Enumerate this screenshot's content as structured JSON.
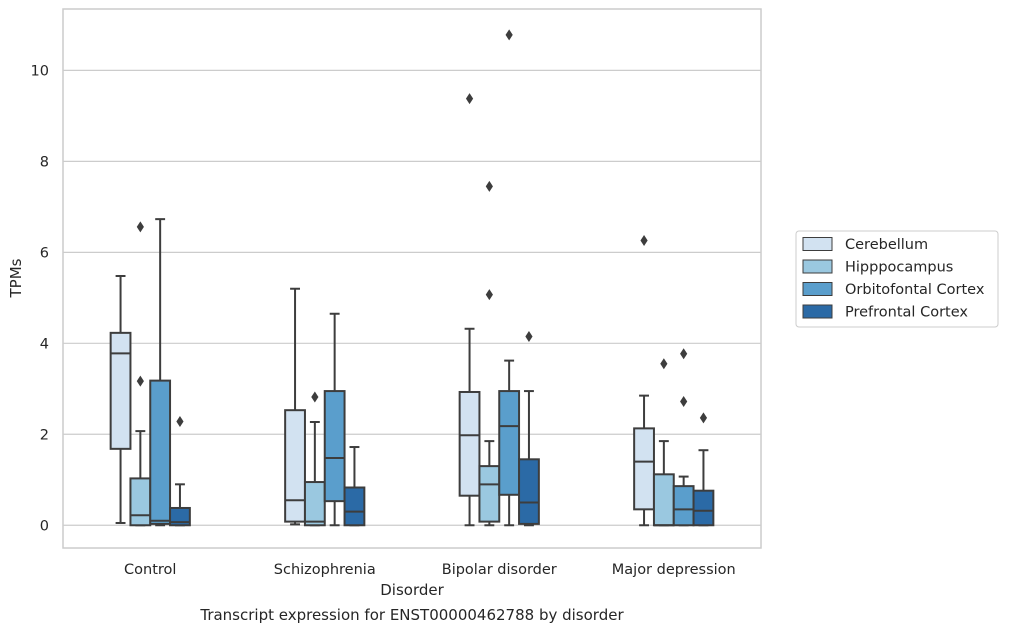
{
  "caption": "Transcript expression for ENST00000462788 by disorder",
  "chart_data": {
    "type": "boxplot",
    "title": "",
    "xlabel": "Disorder",
    "ylabel": "TPMs",
    "ylim": [
      -0.5,
      11.35
    ],
    "yticks": [
      0,
      2,
      4,
      6,
      8,
      10
    ],
    "grid": "horizontal",
    "legend_position": "right",
    "categories": [
      "Control",
      "Schizophrenia",
      "Bipolar disorder",
      "Major depression"
    ],
    "series": [
      {
        "name": "Cerebellum",
        "color": "#d2e2f1",
        "boxes": [
          {
            "whislo": 0.05,
            "q1": 1.68,
            "med": 3.78,
            "q3": 4.23,
            "whishi": 5.48,
            "fliers": []
          },
          {
            "whislo": 0.02,
            "q1": 0.08,
            "med": 0.55,
            "q3": 2.53,
            "whishi": 5.2,
            "fliers": []
          },
          {
            "whislo": 0.0,
            "q1": 0.65,
            "med": 1.98,
            "q3": 2.93,
            "whishi": 4.32,
            "fliers": [
              9.38
            ]
          },
          {
            "whislo": 0.0,
            "q1": 0.35,
            "med": 1.4,
            "q3": 2.13,
            "whishi": 2.85,
            "fliers": [
              6.26
            ]
          }
        ]
      },
      {
        "name": "Hipppocampus",
        "color": "#9ac8e0",
        "boxes": [
          {
            "whislo": 0.0,
            "q1": 0.0,
            "med": 0.22,
            "q3": 1.03,
            "whishi": 2.07,
            "fliers": [
              3.17,
              6.56
            ]
          },
          {
            "whislo": 0.0,
            "q1": 0.0,
            "med": 0.08,
            "q3": 0.95,
            "whishi": 2.27,
            "fliers": [
              2.82
            ]
          },
          {
            "whislo": 0.0,
            "q1": 0.08,
            "med": 0.9,
            "q3": 1.3,
            "whishi": 1.85,
            "fliers": [
              5.07,
              7.45
            ]
          },
          {
            "whislo": 0.0,
            "q1": 0.0,
            "med": 0.0,
            "q3": 1.12,
            "whishi": 1.85,
            "fliers": [
              3.55
            ]
          }
        ]
      },
      {
        "name": "Orbitofontal Cortex",
        "color": "#5a9ecc",
        "boxes": [
          {
            "whislo": 0.0,
            "q1": 0.03,
            "med": 0.1,
            "q3": 3.18,
            "whishi": 6.73,
            "fliers": []
          },
          {
            "whislo": 0.0,
            "q1": 0.53,
            "med": 1.48,
            "q3": 2.95,
            "whishi": 4.65,
            "fliers": []
          },
          {
            "whislo": 0.0,
            "q1": 0.67,
            "med": 2.18,
            "q3": 2.95,
            "whishi": 3.62,
            "fliers": [
              10.78
            ]
          },
          {
            "whislo": 0.0,
            "q1": 0.0,
            "med": 0.35,
            "q3": 0.86,
            "whishi": 1.07,
            "fliers": [
              2.72,
              3.77
            ]
          }
        ]
      },
      {
        "name": "Prefrontal Cortex",
        "color": "#2b6aa6",
        "boxes": [
          {
            "whislo": 0.0,
            "q1": 0.0,
            "med": 0.07,
            "q3": 0.38,
            "whishi": 0.9,
            "fliers": [
              2.28
            ]
          },
          {
            "whislo": 0.0,
            "q1": 0.0,
            "med": 0.3,
            "q3": 0.83,
            "whishi": 1.72,
            "fliers": []
          },
          {
            "whislo": 0.0,
            "q1": 0.03,
            "med": 0.5,
            "q3": 1.45,
            "whishi": 2.95,
            "fliers": [
              4.15
            ]
          },
          {
            "whislo": 0.0,
            "q1": 0.0,
            "med": 0.32,
            "q3": 0.76,
            "whishi": 1.65,
            "fliers": [
              2.36
            ]
          }
        ]
      }
    ]
  }
}
